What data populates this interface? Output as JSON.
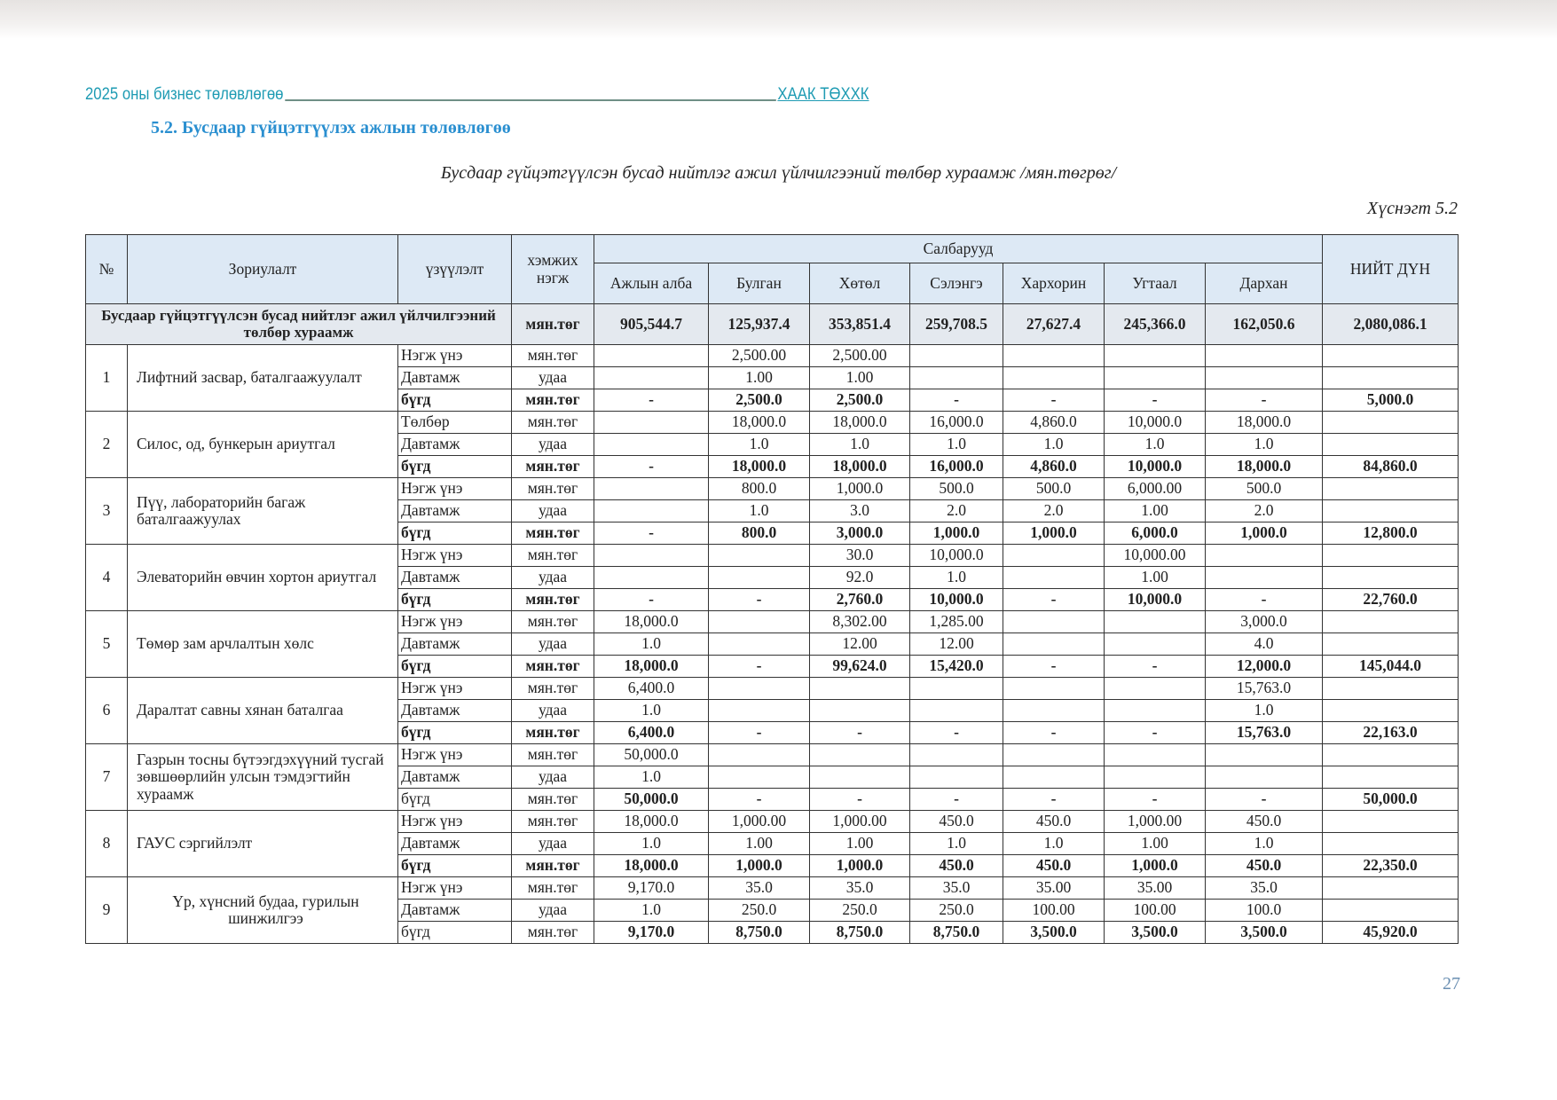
{
  "running_header": {
    "left": "2025 оны бизнес төлөвлөгөө",
    "right": "ХААК ТӨХХК"
  },
  "section_title": "5.2.  Бусдаар гүйцэтгүүлэх ажлын төлөвлөгөө",
  "caption": "Бусдаар гүйцэтгүүлсэн бусад нийтлэг ажил үйлчилгээний төлбөр хураамж /мян.төгрөг/",
  "table_number": "Хүснэгт 5.2",
  "page_number": "27",
  "header": {
    "no": "№",
    "purpose": "Зориулалт",
    "indicator": "үзүүлэлт",
    "unit": "хэмжих нэгж",
    "branches": "Салбарууд",
    "branch_names": [
      "Ажлын алба",
      "Булган",
      "Хөтөл",
      "Сэлэнгэ",
      "Хархорин",
      "Угтаал",
      "Дархан"
    ],
    "total": "НИЙТ ДҮН"
  },
  "summary": {
    "label": "Бусдаар гүйцэтгүүлсэн бусад нийтлэг ажил үйлчилгээний төлбөр хураамж",
    "unit": "мян.төг",
    "values": [
      "905,544.7",
      "125,937.4",
      "353,851.4",
      "259,708.5",
      "27,627.4",
      "245,366.0",
      "162,050.6"
    ],
    "total": "2,080,086.1"
  },
  "groups": [
    {
      "no": "1",
      "name": "Лифтний засвар, баталгаажуулалт",
      "rows": [
        {
          "type": "Нэгж үнэ",
          "unit": "мян.төг",
          "cells": [
            "",
            "2,500.00",
            "2,500.00",
            "",
            "",
            "",
            ""
          ],
          "total": ""
        },
        {
          "type": "Давтамж",
          "unit": "удаа",
          "cells": [
            "",
            "1.00",
            "1.00",
            "",
            "",
            "",
            ""
          ],
          "total": ""
        },
        {
          "type": "бүгд",
          "unit": "мян.төг",
          "bold": true,
          "cells": [
            "-",
            "2,500.0",
            "2,500.0",
            "-",
            "-",
            "-",
            "-"
          ],
          "total": "5,000.0"
        }
      ]
    },
    {
      "no": "2",
      "name": "Силос, од, бункерын ариутгал",
      "rows": [
        {
          "type": "Төлбөр",
          "unit": "мян.төг",
          "cells": [
            "",
            "18,000.0",
            "18,000.0",
            "16,000.0",
            "4,860.0",
            "10,000.0",
            "18,000.0"
          ],
          "total": ""
        },
        {
          "type": "Давтамж",
          "unit": "удаа",
          "cells": [
            "",
            "1.0",
            "1.0",
            "1.0",
            "1.0",
            "1.0",
            "1.0"
          ],
          "total": ""
        },
        {
          "type": "бүгд",
          "unit": "мян.төг",
          "bold": true,
          "cells": [
            "-",
            "18,000.0",
            "18,000.0",
            "16,000.0",
            "4,860.0",
            "10,000.0",
            "18,000.0"
          ],
          "total": "84,860.0"
        }
      ]
    },
    {
      "no": "3",
      "name": "Пүү, лабораторийн багаж баталгаажуулах",
      "rows": [
        {
          "type": "Нэгж үнэ",
          "unit": "мян.төг",
          "cells": [
            "",
            "800.0",
            "1,000.0",
            "500.0",
            "500.0",
            "6,000.00",
            "500.0"
          ],
          "total": ""
        },
        {
          "type": "Давтамж",
          "unit": "удаа",
          "cells": [
            "",
            "1.0",
            "3.0",
            "2.0",
            "2.0",
            "1.00",
            "2.0"
          ],
          "total": ""
        },
        {
          "type": "бүгд",
          "unit": "мян.төг",
          "bold": true,
          "cells": [
            "-",
            "800.0",
            "3,000.0",
            "1,000.0",
            "1,000.0",
            "6,000.0",
            "1,000.0"
          ],
          "total": "12,800.0"
        }
      ]
    },
    {
      "no": "4",
      "name": "Элеваторийн өвчин хортон ариутгал",
      "rows": [
        {
          "type": "Нэгж үнэ",
          "unit": "мян.төг",
          "cells": [
            "",
            "",
            "30.0",
            "10,000.0",
            "",
            "10,000.00",
            ""
          ],
          "total": ""
        },
        {
          "type": "Давтамж",
          "unit": "удаа",
          "cells": [
            "",
            "",
            "92.0",
            "1.0",
            "",
            "1.00",
            ""
          ],
          "total": ""
        },
        {
          "type": "бүгд",
          "unit": "мян.төг",
          "bold": true,
          "cells": [
            "-",
            "-",
            "2,760.0",
            "10,000.0",
            "-",
            "10,000.0",
            "-"
          ],
          "total": "22,760.0"
        }
      ]
    },
    {
      "no": "5",
      "name": "Төмөр зам арчлалтын хөлс",
      "rows": [
        {
          "type": "Нэгж үнэ",
          "unit": "мян.төг",
          "cells": [
            "18,000.0",
            "",
            "8,302.00",
            "1,285.00",
            "",
            "",
            "3,000.0"
          ],
          "total": ""
        },
        {
          "type": "Давтамж",
          "unit": "удаа",
          "cells": [
            "1.0",
            "",
            "12.00",
            "12.00",
            "",
            "",
            "4.0"
          ],
          "total": ""
        },
        {
          "type": "бүгд",
          "unit": "мян.төг",
          "bold": true,
          "cells": [
            "18,000.0",
            "-",
            "99,624.0",
            "15,420.0",
            "-",
            "-",
            "12,000.0"
          ],
          "total": "145,044.0"
        }
      ]
    },
    {
      "no": "6",
      "name": "Даралтат савны хянан баталгаа",
      "rows": [
        {
          "type": "Нэгж үнэ",
          "unit": "мян.төг",
          "cells": [
            "6,400.0",
            "",
            "",
            "",
            "",
            "",
            "15,763.0"
          ],
          "total": ""
        },
        {
          "type": "Давтамж",
          "unit": "удаа",
          "cells": [
            "1.0",
            "",
            "",
            "",
            "",
            "",
            "1.0"
          ],
          "total": ""
        },
        {
          "type": "бүгд",
          "unit": "мян.төг",
          "bold": true,
          "cells": [
            "6,400.0",
            "-",
            "-",
            "-",
            "-",
            "-",
            "15,763.0"
          ],
          "total": "22,163.0"
        }
      ]
    },
    {
      "no": "7",
      "name": "Газрын тосны бүтээгдэхүүний тусгай зөвшөөрлийн улсын тэмдэгтийн хураамж",
      "rows": [
        {
          "type": "Нэгж үнэ",
          "unit": "мян.төг",
          "cells": [
            "50,000.0",
            "",
            "",
            "",
            "",
            "",
            ""
          ],
          "total": ""
        },
        {
          "type": "Давтамж",
          "unit": "удаа",
          "cells": [
            "1.0",
            "",
            "",
            "",
            "",
            "",
            ""
          ],
          "total": ""
        },
        {
          "type": "бүгд",
          "unit": "мян.төг",
          "bold": true,
          "label_plain": true,
          "cells": [
            "50,000.0",
            "-",
            "-",
            "-",
            "-",
            "-",
            "-"
          ],
          "total": "50,000.0"
        }
      ]
    },
    {
      "no": "8",
      "name": "ГАУС сэргийлэлт",
      "rows": [
        {
          "type": "Нэгж үнэ",
          "unit": "мян.төг",
          "cells": [
            "18,000.0",
            "1,000.00",
            "1,000.00",
            "450.0",
            "450.0",
            "1,000.00",
            "450.0"
          ],
          "total": ""
        },
        {
          "type": "Давтамж",
          "unit": "удаа",
          "cells": [
            "1.0",
            "1.00",
            "1.00",
            "1.0",
            "1.0",
            "1.00",
            "1.0"
          ],
          "total": ""
        },
        {
          "type": "бүгд",
          "unit": "мян.төг",
          "bold": true,
          "cells": [
            "18,000.0",
            "1,000.0",
            "1,000.0",
            "450.0",
            "450.0",
            "1,000.0",
            "450.0"
          ],
          "total": "22,350.0"
        }
      ]
    },
    {
      "no": "9",
      "name": "Үр, хүнсний будаа, гурилын шинжилгээ",
      "center": true,
      "rows": [
        {
          "type": "Нэгж үнэ",
          "unit": "мян.төг",
          "cells": [
            "9,170.0",
            "35.0",
            "35.0",
            "35.0",
            "35.00",
            "35.00",
            "35.0"
          ],
          "total": ""
        },
        {
          "type": "Давтамж",
          "unit": "удаа",
          "cells": [
            "1.0",
            "250.0",
            "250.0",
            "250.0",
            "100.00",
            "100.00",
            "100.0"
          ],
          "total": ""
        },
        {
          "type": "бүгд",
          "unit": "мян.төг",
          "bold": true,
          "label_plain": true,
          "cells": [
            "9,170.0",
            "8,750.0",
            "8,750.0",
            "8,750.0",
            "3,500.0",
            "3,500.0",
            "3,500.0"
          ],
          "total": "45,920.0"
        }
      ]
    }
  ],
  "colors": {
    "header_accent": "#1e9bb3",
    "section_title": "#2a8fd0",
    "header_fill": "#dde9f5",
    "summary_fill": "#e4e9ef"
  }
}
